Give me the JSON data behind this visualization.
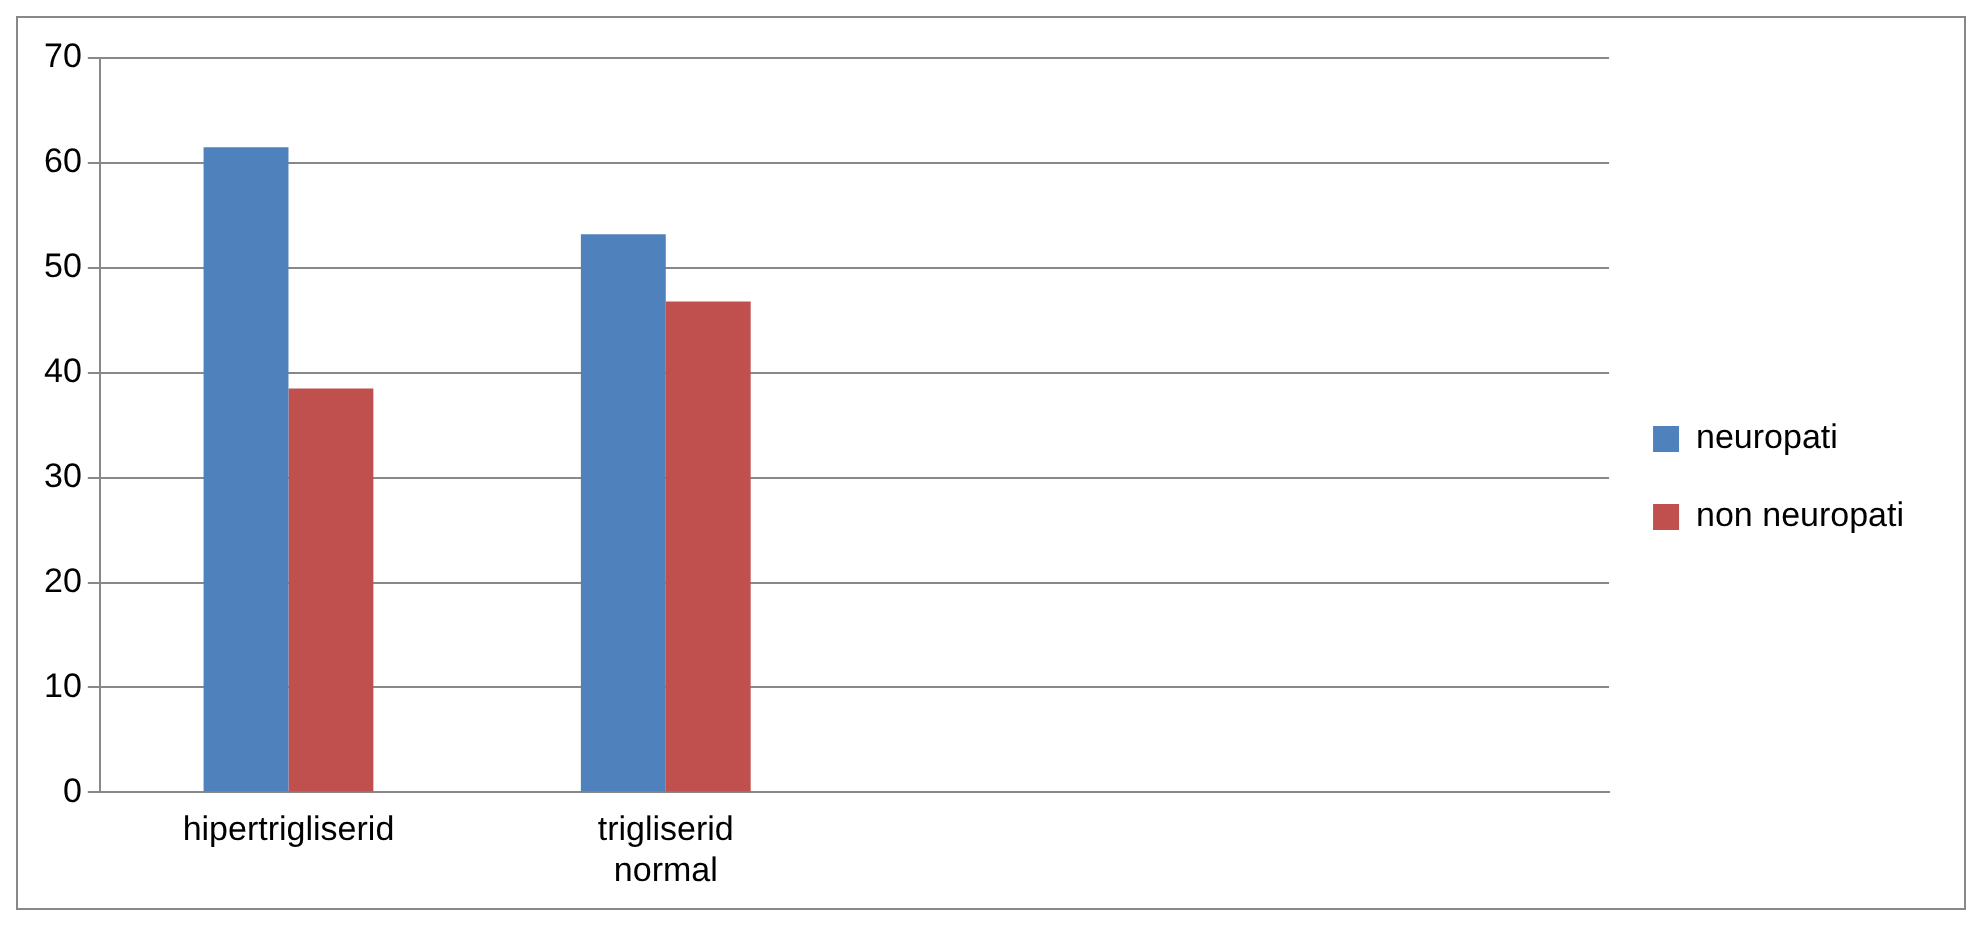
{
  "chart_data": {
    "type": "bar",
    "categories": [
      "hipertrigliserid",
      "trigliserid normal",
      null,
      null
    ],
    "series": [
      {
        "name": "neuropati",
        "color": "#4f81bd",
        "values": [
          61.5,
          53.2,
          null,
          null
        ]
      },
      {
        "name": "non neuropati",
        "color": "#c0504d",
        "values": [
          38.5,
          46.8,
          null,
          null
        ]
      }
    ],
    "ylim": [
      0,
      70
    ],
    "yticks": [
      0,
      10,
      20,
      30,
      40,
      50,
      60,
      70
    ],
    "grid": "y",
    "legend": "right"
  }
}
